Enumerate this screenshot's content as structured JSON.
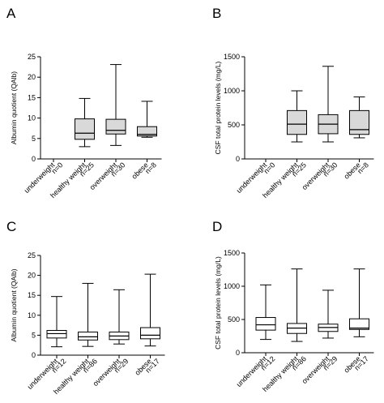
{
  "chart_data": [
    {
      "panel": "A",
      "type": "box",
      "ylabel": "Albumin quotient (QAlb)",
      "ylim": [
        0,
        25
      ],
      "yticks": [
        "0",
        "5",
        "10",
        "15",
        "20",
        "25"
      ],
      "box_fill": "#d9d9d9",
      "categories": [
        {
          "name": "underweight",
          "n": "n=0",
          "stats": null
        },
        {
          "name": "healthy weight",
          "n": "n=25",
          "stats": {
            "min": 3.0,
            "q1": 4.8,
            "median": 6.3,
            "q3": 9.8,
            "max": 14.8
          }
        },
        {
          "name": "overweight",
          "n": "n=30",
          "stats": {
            "min": 3.3,
            "q1": 6.1,
            "median": 7.0,
            "q3": 9.7,
            "max": 23.1
          }
        },
        {
          "name": "obese",
          "n": "n=8",
          "stats": {
            "min": 5.3,
            "q1": 5.6,
            "median": 6.0,
            "q3": 7.9,
            "max": 14.1
          }
        }
      ]
    },
    {
      "panel": "B",
      "type": "box",
      "ylabel": "CSF total protein levels (mg/L)",
      "ylim": [
        0,
        1500
      ],
      "yticks": [
        "0",
        "500",
        "1000",
        "1500"
      ],
      "box_fill": "#d9d9d9",
      "categories": [
        {
          "name": "underweight",
          "n": "n=0",
          "stats": null
        },
        {
          "name": "healthy weight",
          "n": "n=25",
          "stats": {
            "min": 250,
            "q1": 360,
            "median": 510,
            "q3": 710,
            "max": 1000
          }
        },
        {
          "name": "overweight",
          "n": "n=30",
          "stats": {
            "min": 250,
            "q1": 370,
            "median": 510,
            "q3": 650,
            "max": 1360
          }
        },
        {
          "name": "obese",
          "n": "n=8",
          "stats": {
            "min": 310,
            "q1": 360,
            "median": 430,
            "q3": 710,
            "max": 910
          }
        }
      ]
    },
    {
      "panel": "C",
      "type": "box",
      "ylabel": "Albumin quotient (QAlb)",
      "ylim": [
        0,
        25
      ],
      "yticks": [
        "0",
        "5",
        "10",
        "15",
        "20",
        "25"
      ],
      "box_fill": "#ffffff",
      "categories": [
        {
          "name": "underweight",
          "n": "n=12",
          "stats": {
            "min": 2.1,
            "q1": 4.3,
            "median": 5.4,
            "q3": 6.2,
            "max": 14.7
          }
        },
        {
          "name": "healthy weight",
          "n": "n=86",
          "stats": {
            "min": 2.2,
            "q1": 3.8,
            "median": 4.6,
            "q3": 5.8,
            "max": 18.0
          }
        },
        {
          "name": "overweight",
          "n": "n=29",
          "stats": {
            "min": 2.8,
            "q1": 3.9,
            "median": 4.8,
            "q3": 5.8,
            "max": 16.4
          }
        },
        {
          "name": "obese",
          "n": "n=17",
          "stats": {
            "min": 2.3,
            "q1": 4.1,
            "median": 5.0,
            "q3": 6.9,
            "max": 20.3
          }
        }
      ]
    },
    {
      "panel": "D",
      "type": "box",
      "ylabel": "CSF total protein levels (mg/L)",
      "ylim": [
        0,
        1500
      ],
      "yticks": [
        "0",
        "500",
        "1000",
        "1500"
      ],
      "box_fill": "#ffffff",
      "categories": [
        {
          "name": "underweight",
          "n": "n=12",
          "stats": {
            "min": 200,
            "q1": 340,
            "median": 420,
            "q3": 530,
            "max": 1020
          }
        },
        {
          "name": "healthy weight",
          "n": "n=86",
          "stats": {
            "min": 170,
            "q1": 290,
            "median": 370,
            "q3": 440,
            "max": 1260
          }
        },
        {
          "name": "overweight",
          "n": "n=29",
          "stats": {
            "min": 220,
            "q1": 320,
            "median": 380,
            "q3": 430,
            "max": 940
          }
        },
        {
          "name": "obese",
          "n": "n=17",
          "stats": {
            "min": 240,
            "q1": 350,
            "median": 370,
            "q3": 510,
            "max": 1260
          }
        }
      ]
    }
  ]
}
